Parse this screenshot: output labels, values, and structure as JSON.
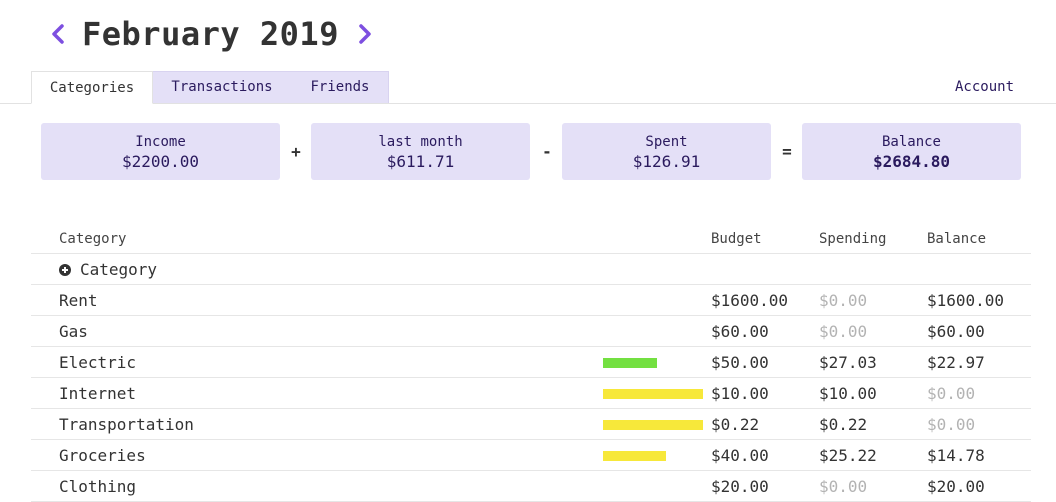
{
  "header": {
    "title": "February 2019",
    "prev_icon": "chevron-left-icon",
    "next_icon": "chevron-right-icon",
    "accent": "#7d4fe0"
  },
  "tabs": {
    "categories": "Categories",
    "transactions": "Transactions",
    "friends": "Friends",
    "account": "Account"
  },
  "summary": {
    "income": {
      "label": "Income",
      "value": "$2200.00"
    },
    "op1": "+",
    "last_month": {
      "label": "last month",
      "value": "$611.71"
    },
    "op2": "-",
    "spent": {
      "label": "Spent",
      "value": "$126.91"
    },
    "op3": "=",
    "balance": {
      "label": "Balance",
      "value": "$2684.80"
    }
  },
  "table": {
    "headers": {
      "category": "Category",
      "budget": "Budget",
      "spending": "Spending",
      "balance": "Balance"
    },
    "add_label": "Category",
    "rows": [
      {
        "name": "Rent",
        "budget": "$1600.00",
        "spending": "$0.00",
        "balance": "$1600.00",
        "progress": null,
        "bar_color": null
      },
      {
        "name": "Gas",
        "budget": "$60.00",
        "spending": "$0.00",
        "balance": "$60.00",
        "progress": null,
        "bar_color": null
      },
      {
        "name": "Electric",
        "budget": "$50.00",
        "spending": "$27.03",
        "balance": "$22.97",
        "progress": 0.54,
        "bar_color": "#73e041"
      },
      {
        "name": "Internet",
        "budget": "$10.00",
        "spending": "$10.00",
        "balance": "$0.00",
        "progress": 1.0,
        "bar_color": "#f7e83a"
      },
      {
        "name": "Transportation",
        "budget": "$0.22",
        "spending": "$0.22",
        "balance": "$0.00",
        "progress": 1.0,
        "bar_color": "#f7e83a"
      },
      {
        "name": "Groceries",
        "budget": "$40.00",
        "spending": "$25.22",
        "balance": "$14.78",
        "progress": 0.63,
        "bar_color": "#f7e83a"
      },
      {
        "name": "Clothing",
        "budget": "$20.00",
        "spending": "$0.00",
        "balance": "$20.00",
        "progress": null,
        "bar_color": null
      }
    ]
  }
}
